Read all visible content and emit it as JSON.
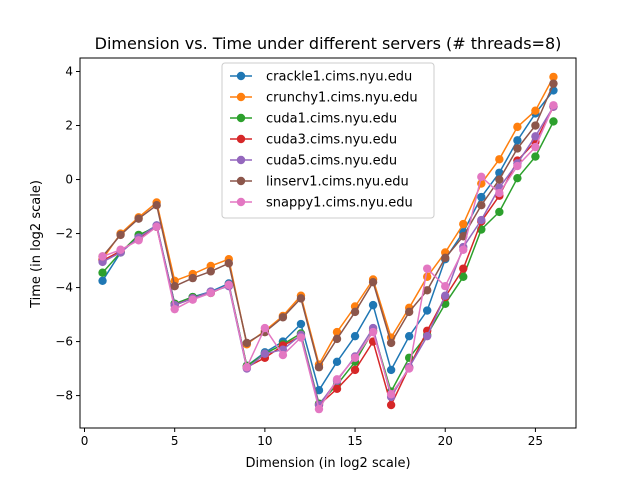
{
  "chart_data": {
    "type": "line",
    "title": "Dimension vs. Time under different servers (# threads=8)",
    "xlabel": "Dimension (in log2 scale)",
    "ylabel": "Time (in log2 scale)",
    "xlim": [
      -0.25,
      27.25
    ],
    "ylim": [
      -9.2,
      4.5
    ],
    "xticks": [
      0,
      5,
      10,
      15,
      20,
      25
    ],
    "yticks": [
      -8,
      -6,
      -4,
      -2,
      0,
      2,
      4
    ],
    "grid": false,
    "legend_position": "upper-center",
    "markers": "circle",
    "x": [
      1,
      2,
      3,
      4,
      5,
      6,
      7,
      8,
      9,
      10,
      11,
      12,
      13,
      14,
      15,
      16,
      17,
      18,
      19,
      20,
      21,
      22,
      23,
      24,
      25,
      26
    ],
    "series": [
      {
        "name": "crackle1.cims.nyu.edu",
        "color": "#1f77b4",
        "values": [
          -3.75,
          -2.7,
          -2.1,
          -1.7,
          -4.6,
          -4.35,
          -4.15,
          -3.85,
          -6.9,
          -6.4,
          -6.0,
          -5.35,
          -7.8,
          -6.75,
          -5.8,
          -4.65,
          -7.05,
          -5.8,
          -4.85,
          -2.95,
          -1.95,
          -0.65,
          0.25,
          1.45,
          2.45,
          3.3
        ]
      },
      {
        "name": "crunchy1.cims.nyu.edu",
        "color": "#ff7f0e",
        "values": [
          -2.95,
          -2.0,
          -1.4,
          -0.85,
          -3.75,
          -3.5,
          -3.2,
          -2.95,
          -6.1,
          -5.6,
          -5.05,
          -4.3,
          -6.85,
          -5.65,
          -4.7,
          -3.7,
          -5.85,
          -4.75,
          -3.6,
          -2.7,
          -1.65,
          -0.15,
          0.75,
          1.95,
          2.55,
          3.8
        ]
      },
      {
        "name": "cuda1.cims.nyu.edu",
        "color": "#2ca02c",
        "values": [
          -3.45,
          -2.7,
          -2.05,
          -1.75,
          -4.6,
          -4.35,
          -4.2,
          -3.9,
          -6.9,
          -6.45,
          -6.1,
          -5.7,
          -8.3,
          -7.6,
          -6.75,
          -5.6,
          -7.85,
          -6.6,
          -5.75,
          -4.6,
          -3.6,
          -1.85,
          -1.2,
          0.05,
          0.85,
          2.15
        ]
      },
      {
        "name": "cuda3.cims.nyu.edu",
        "color": "#d62728",
        "values": [
          -3.0,
          -2.65,
          -2.2,
          -1.75,
          -4.65,
          -4.4,
          -4.2,
          -3.9,
          -6.95,
          -6.6,
          -6.15,
          -5.8,
          -8.35,
          -7.75,
          -7.05,
          -6.0,
          -8.35,
          -6.95,
          -5.6,
          -4.35,
          -3.3,
          -1.55,
          -0.6,
          0.7,
          1.4,
          2.7
        ]
      },
      {
        "name": "cuda5.cims.nyu.edu",
        "color": "#9467bd",
        "values": [
          -3.05,
          -2.7,
          -2.15,
          -1.7,
          -4.65,
          -4.4,
          -4.15,
          -3.95,
          -7.0,
          -6.45,
          -6.3,
          -5.75,
          -8.35,
          -7.45,
          -6.55,
          -5.5,
          -8.05,
          -6.95,
          -5.8,
          -4.3,
          -2.5,
          -1.5,
          -0.3,
          0.6,
          1.6,
          2.7
        ]
      },
      {
        "name": "linserv1.cims.nyu.edu",
        "color": "#8c564b",
        "values": [
          -2.85,
          -2.05,
          -1.45,
          -0.95,
          -3.95,
          -3.65,
          -3.4,
          -3.1,
          -6.05,
          -5.65,
          -5.1,
          -4.4,
          -6.95,
          -5.9,
          -4.9,
          -3.8,
          -6.05,
          -4.9,
          -4.1,
          -2.9,
          -2.1,
          -0.95,
          0.0,
          1.15,
          2.0,
          3.55
        ]
      },
      {
        "name": "snappy1.cims.nyu.edu",
        "color": "#e377c2",
        "values": [
          -2.85,
          -2.6,
          -2.25,
          -1.75,
          -4.8,
          -4.45,
          -4.2,
          -3.9,
          -6.95,
          -5.5,
          -6.5,
          -5.85,
          -8.5,
          -7.4,
          -6.6,
          -5.65,
          -7.95,
          -7.0,
          -3.3,
          -3.95,
          -2.6,
          0.1,
          -0.5,
          0.5,
          1.2,
          2.75
        ]
      }
    ]
  }
}
